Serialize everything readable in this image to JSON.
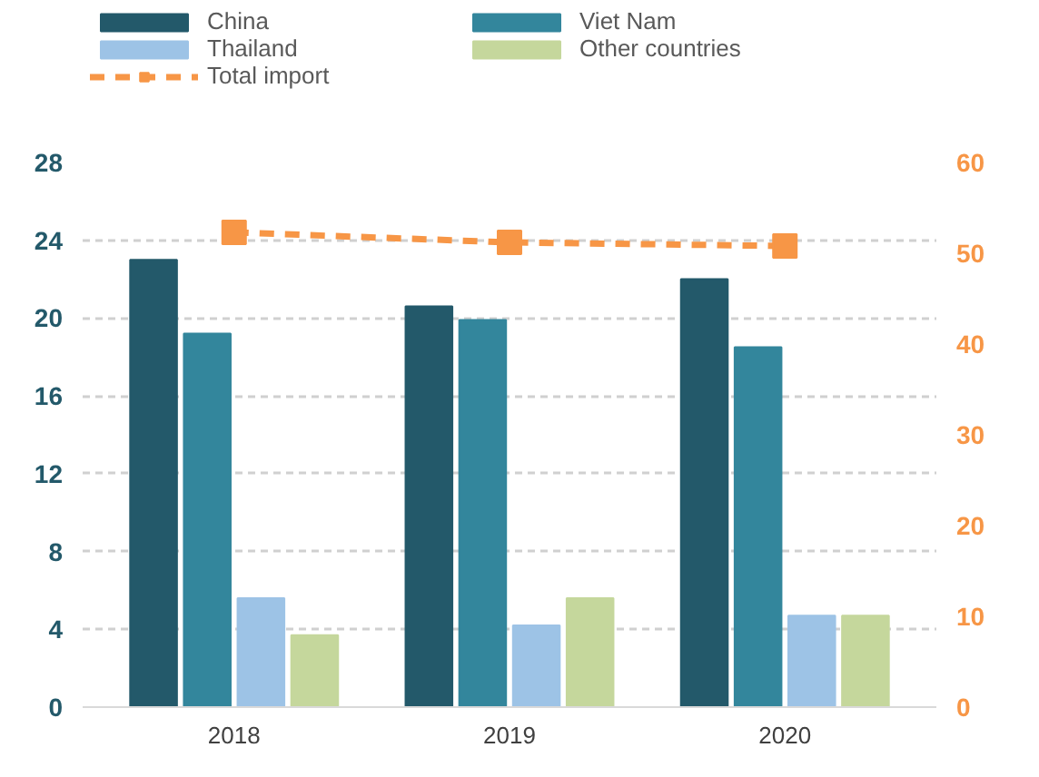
{
  "chart_data": {
    "type": "bar",
    "categories": [
      "2018",
      "2019",
      "2020"
    ],
    "series": [
      {
        "name": "China",
        "color": "#23596a",
        "values": [
          23.0,
          20.6,
          22.0
        ]
      },
      {
        "name": "Viet Nam",
        "color": "#33869c",
        "values": [
          19.2,
          19.9,
          18.5
        ]
      },
      {
        "name": "Thailand",
        "color": "#9dc3e6",
        "values": [
          5.6,
          4.2,
          4.7
        ]
      },
      {
        "name": "Other countries",
        "color": "#c5d79c",
        "values": [
          3.7,
          5.6,
          4.7
        ]
      },
      {
        "name": "Total import",
        "color": "#f79646",
        "type": "line",
        "axis": "y2",
        "marker": "square",
        "line_style": "dashed",
        "values": [
          52.3,
          51.2,
          50.8
        ]
      }
    ],
    "ylim": [
      0,
      28
    ],
    "yticks": [
      0,
      4,
      8,
      12,
      16,
      20,
      24,
      28
    ],
    "y2lim": [
      0,
      60
    ],
    "y2ticks": [
      0,
      10,
      20,
      30,
      40,
      50,
      60
    ],
    "grid": "y",
    "legend": "top"
  }
}
